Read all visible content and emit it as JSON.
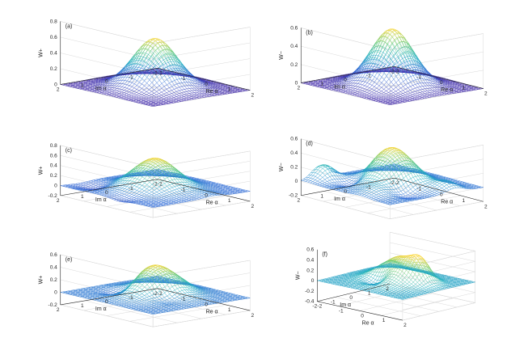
{
  "figure": {
    "colormap": [
      "#3e26a8",
      "#2f6bd7",
      "#1fb0c0",
      "#6dcc76",
      "#f9d42a"
    ],
    "grid_color": "#d9d9d9",
    "axis_color": "#262626"
  },
  "chart_data": [
    {
      "type": "surface",
      "panel_label": "(a)",
      "zlabel": "W+",
      "xlabel": "Re α",
      "ylabel": "Im α",
      "zlim": [
        0,
        0.8
      ],
      "zticks": [
        "0",
        "0.2",
        "0.4",
        "0.6",
        "0.8"
      ],
      "xticks": [
        "-2",
        "-1",
        "0",
        "1",
        "2"
      ],
      "yticks": [
        "2",
        "1",
        "0",
        "-1",
        "-2"
      ],
      "view": "left",
      "peak": 0.62,
      "bumps": []
    },
    {
      "type": "surface",
      "panel_label": "(b)",
      "zlabel": "W−",
      "xlabel": "Re α",
      "ylabel": "Im α",
      "zlim": [
        0,
        0.6
      ],
      "zticks": [
        "0",
        "0.2",
        "0.4",
        "0.6"
      ],
      "xticks": [
        "-2",
        "-1",
        "0",
        "1",
        "2"
      ],
      "yticks": [
        "2",
        "1",
        "0",
        "-1",
        "-2"
      ],
      "view": "left",
      "peak": 0.62,
      "bumps": []
    },
    {
      "type": "surface",
      "panel_label": "(c)",
      "zlabel": "W+",
      "xlabel": "Re α",
      "ylabel": "Im α",
      "zlim": [
        -0.2,
        0.8
      ],
      "zticks": [
        "-0.2",
        "0",
        "0.2",
        "0.4",
        "0.6",
        "0.8"
      ],
      "xticks": [
        "-2",
        "-1",
        "0",
        "1",
        "2"
      ],
      "yticks": [
        "2",
        "1",
        "0",
        "-1",
        "-2"
      ],
      "view": "left",
      "peak": 0.6,
      "bumps": [
        [
          1.7,
          -0.5,
          0.04
        ],
        [
          -1.4,
          1.2,
          -0.08
        ],
        [
          0.5,
          1.8,
          -0.05
        ]
      ]
    },
    {
      "type": "surface",
      "panel_label": "(d)",
      "zlabel": "W−",
      "xlabel": "Re α",
      "ylabel": "Im α",
      "zlim": [
        -0.2,
        0.6
      ],
      "zticks": [
        "-0.2",
        "0",
        "0.2",
        "0.4",
        "0.6"
      ],
      "xticks": [
        "-2",
        "-1",
        "0",
        "1",
        "2"
      ],
      "yticks": [
        "2",
        "1",
        "0",
        "-1",
        "-2"
      ],
      "view": "left",
      "peak": 0.52,
      "bumps": [
        [
          -1.8,
          1.2,
          0.2
        ],
        [
          1.6,
          -0.8,
          0.12
        ],
        [
          -0.8,
          0.9,
          -0.12
        ],
        [
          0.7,
          1.4,
          0.08
        ],
        [
          1.2,
          0.6,
          -0.08
        ]
      ]
    },
    {
      "type": "surface",
      "panel_label": "(e)",
      "zlabel": "W+",
      "xlabel": "Re α",
      "ylabel": "Im α",
      "zlim": [
        -0.2,
        0.6
      ],
      "zticks": [
        "-0.2",
        "0",
        "0.2",
        "0.4",
        "0.6"
      ],
      "xticks": [
        "-2",
        "-1",
        "0",
        "1",
        "2"
      ],
      "yticks": [
        "2",
        "1",
        "0",
        "-1",
        "-2"
      ],
      "view": "left",
      "peak": 0.48,
      "bumps": [
        [
          -0.8,
          0.6,
          -0.15
        ],
        [
          0.8,
          0.4,
          -0.12
        ],
        [
          0.0,
          -1.0,
          0.06
        ]
      ]
    },
    {
      "type": "surface",
      "panel_label": "(f)",
      "zlabel": "W−",
      "xlabel": "Re α",
      "ylabel": "Im α",
      "zlim": [
        -0.4,
        0.6
      ],
      "zticks": [
        "-0.4",
        "-0.2",
        "0",
        "0.2",
        "0.4",
        "0.6"
      ],
      "xticks": [
        "-2",
        "-1",
        "0",
        "1",
        "2"
      ],
      "yticks": [
        "2",
        "1",
        "0",
        "-1",
        "-2"
      ],
      "view": "right",
      "peak": 0.5,
      "bumps": [
        [
          0.9,
          0.3,
          0.35
        ],
        [
          -0.3,
          -0.6,
          -0.3
        ],
        [
          -1.0,
          0.8,
          0.15
        ]
      ]
    }
  ]
}
